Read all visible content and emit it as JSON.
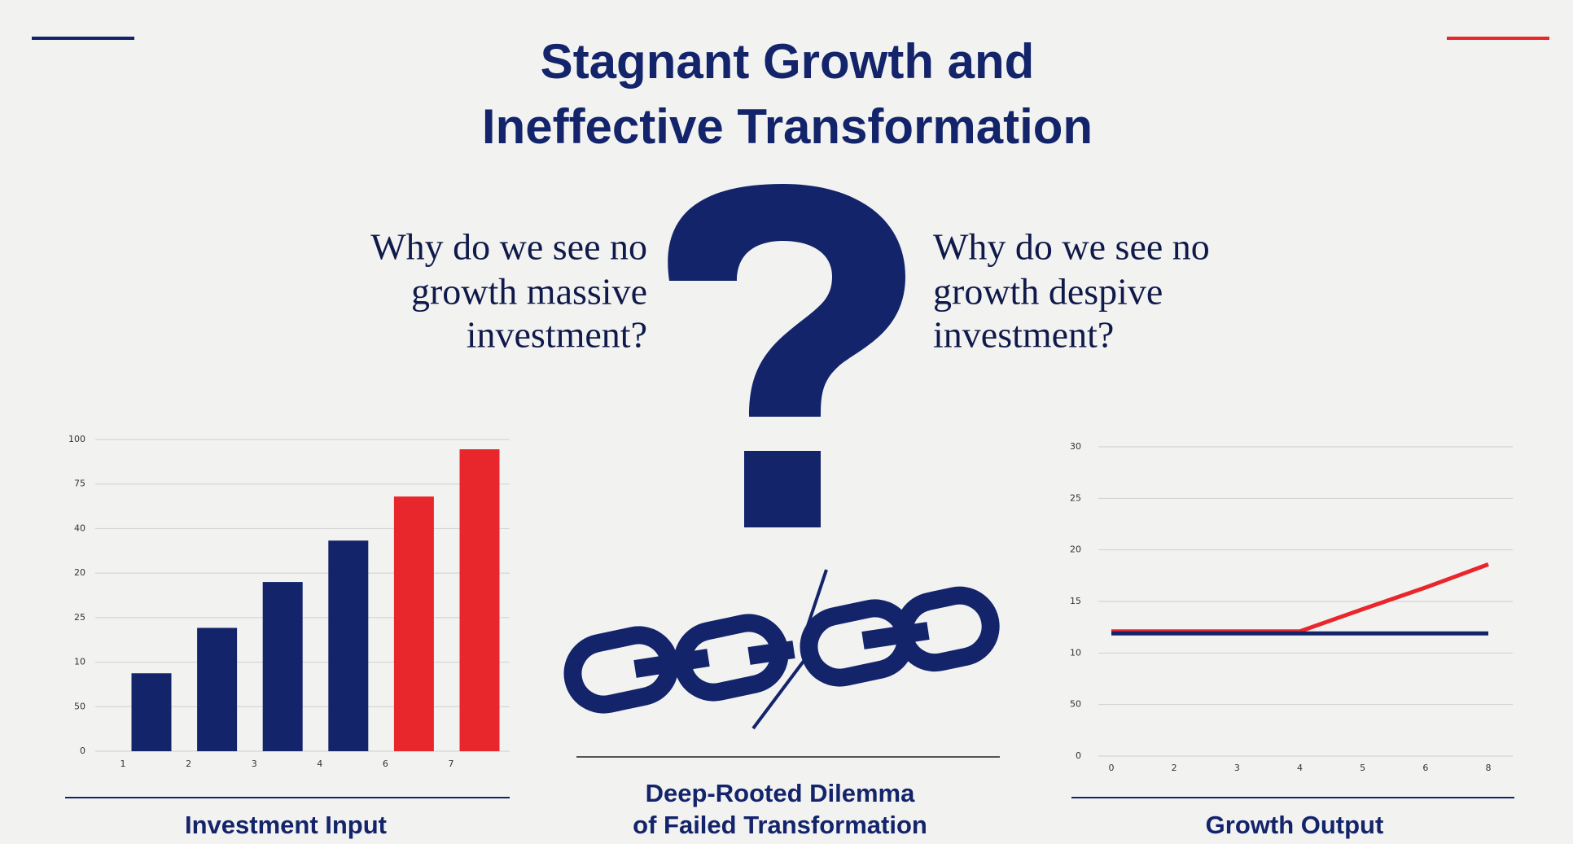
{
  "header": {
    "title": [
      "Stagnant Growth and",
      "Ineffective Transformation"
    ]
  },
  "questions": {
    "left": [
      "Why do we see no",
      "growth massive",
      "investment?"
    ],
    "right": [
      "Why do we see no",
      "growth despive",
      "investment?"
    ]
  },
  "middle_caption": [
    "Deep-Rooted Dilemma",
    "of Failed Transformation"
  ],
  "chart_data": [
    {
      "type": "bar",
      "title": "Investment Input",
      "categories": [
        "1",
        "2",
        "3",
        "4",
        "6",
        "7"
      ],
      "values": [
        1.75,
        2.77,
        3.8,
        4.73,
        5.72,
        6.78
      ],
      "colors": [
        "#13246b",
        "#13246b",
        "#13246b",
        "#13246b",
        "#e8272c",
        "#e8272c"
      ],
      "ylim": [
        0,
        7
      ],
      "yticks": [
        {
          "value": 0,
          "label": "0"
        },
        {
          "value": 1,
          "label": "50"
        },
        {
          "value": 2,
          "label": "10"
        },
        {
          "value": 3,
          "label": "25"
        },
        {
          "value": 4,
          "label": "20"
        },
        {
          "value": 5,
          "label": "40"
        },
        {
          "value": 6,
          "label": "75"
        },
        {
          "value": 7,
          "label": "100"
        }
      ],
      "grid": true
    },
    {
      "type": "line",
      "title": "Growth Output",
      "categories": [
        "0",
        "2",
        "3",
        "4",
        "5",
        "6",
        "8"
      ],
      "series": [
        {
          "color": "#e8272c",
          "values": [
            2.42,
            2.42,
            2.42,
            2.42,
            2.85,
            3.27,
            3.72
          ]
        },
        {
          "color": "#13246b",
          "values": [
            2.38,
            2.38,
            2.38,
            2.38,
            2.38,
            2.38,
            2.38
          ]
        }
      ],
      "ylim": [
        0,
        6
      ],
      "yticks": [
        {
          "value": 0,
          "label": "0"
        },
        {
          "value": 1,
          "label": "50"
        },
        {
          "value": 2,
          "label": "10"
        },
        {
          "value": 3,
          "label": "15"
        },
        {
          "value": 4,
          "label": "20"
        },
        {
          "value": 5,
          "label": "25"
        },
        {
          "value": 6,
          "label": "30"
        }
      ],
      "grid": true
    }
  ]
}
